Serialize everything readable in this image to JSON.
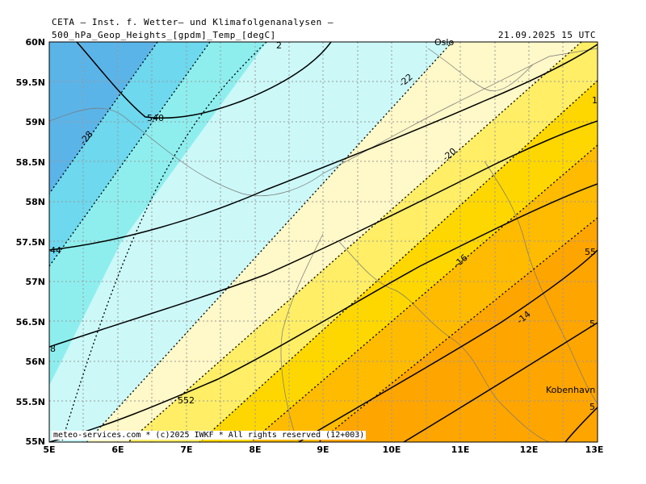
{
  "header": {
    "title": "CETA – Inst. f. Wetter– und Klimafolgenanalysen –",
    "subtitle": "500_hPa_Geop_Heights_[gpdm]_Temp_[degC]",
    "datetime": "21.09.2025 15 UTC"
  },
  "footer": {
    "credit": "meteo-services.com * (c)2025 IWKF * All rights reserved (12+003)"
  },
  "map": {
    "lat_labels": [
      "60N",
      "59.5N",
      "59N",
      "58.5N",
      "58N",
      "57.5N",
      "57N",
      "56.5N",
      "56N",
      "55.5N",
      "55N"
    ],
    "lon_labels": [
      "5E",
      "6E",
      "7E",
      "8E",
      "9E",
      "10E",
      "11E",
      "12E",
      "13E"
    ],
    "place_labels": {
      "oslo": "Oslo",
      "kobenhavn": "Kobenhavn"
    },
    "height_labels": {
      "h540": "540",
      "h552": "552",
      "h544": "44",
      "h548": "8",
      "h556a": "55",
      "h556b": "5",
      "h556c": "5"
    },
    "temp_labels": {
      "t28": "-28",
      "t22": "-22",
      "t20": "-20",
      "t16": "-16",
      "t14": "-14",
      "t2": "2",
      "t1": "1"
    },
    "temp_band_colors": [
      "#5bb4e8",
      "#6dd8ee",
      "#8eeeee",
      "#ccf8f8",
      "#fff8c8",
      "#ffee66",
      "#ffd700",
      "#ffbb00",
      "#ffa500"
    ]
  }
}
